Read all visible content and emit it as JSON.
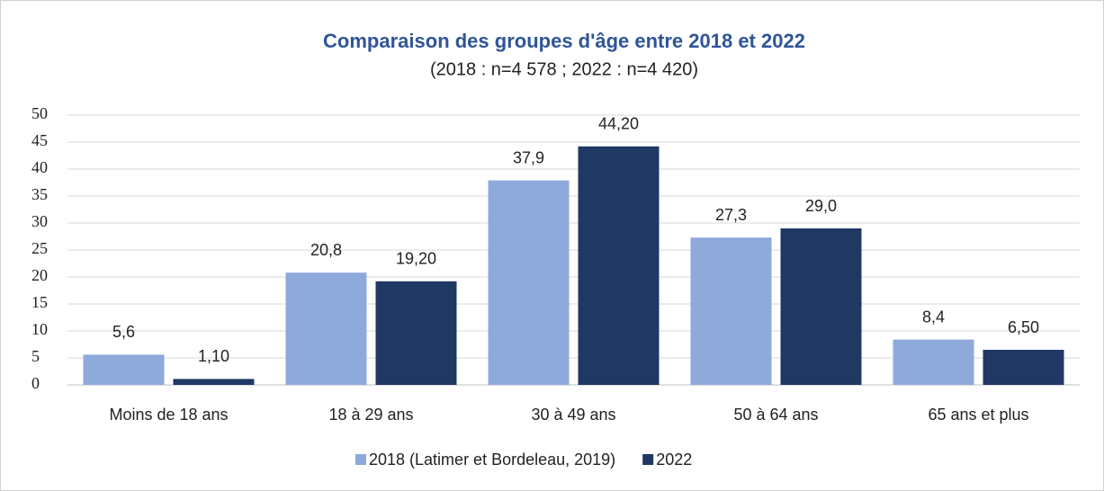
{
  "chart_data": {
    "type": "bar",
    "title": "Comparaison des groupes d'âge entre 2018 et 2022",
    "subtitle": "(2018 : n=4 578 ; 2022 : n=4 420)",
    "categories": [
      "Moins de 18 ans",
      "18 à 29 ans",
      "30 à 49 ans",
      "50 à 64 ans",
      "65 ans et plus"
    ],
    "series": [
      {
        "name": "2018 (Latimer et Bordeleau, 2019)",
        "color": "#8eaadb",
        "values": [
          5.6,
          20.8,
          37.9,
          27.3,
          8.4
        ],
        "value_labels": [
          "5,6",
          "20,8",
          "37,9",
          "27,3",
          "8,4"
        ]
      },
      {
        "name": "2022",
        "color": "#203864",
        "values": [
          1.1,
          19.2,
          44.2,
          29.0,
          6.5
        ],
        "value_labels": [
          "1,10",
          "19,20",
          "44,20",
          "29,0",
          "6,50"
        ]
      }
    ],
    "ylim": [
      0,
      50
    ],
    "yticks": [
      0,
      5,
      10,
      15,
      20,
      25,
      30,
      35,
      40,
      45,
      50
    ],
    "grid": true,
    "legend": "bottom"
  }
}
